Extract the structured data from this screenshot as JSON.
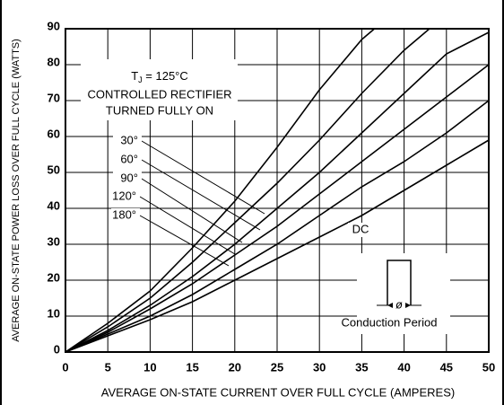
{
  "chart_data": {
    "type": "line",
    "xlabel": "AVERAGE ON-STATE CURRENT OVER FULL CYCLE (AMPERES)",
    "ylabel": "AVERAGE ON-STATE POWER LOSS OVER FULL CYCLE (WATTS)",
    "annotations": {
      "tj": {
        "base": "T",
        "sub": "J",
        "rest": " = 125°C"
      },
      "line1": "CONTROLLED RECTIFIER",
      "line2": "TURNED FULLY ON",
      "phi": "ø",
      "conduction": "Conduction Period"
    },
    "xlim": [
      0,
      50
    ],
    "ylim": [
      0,
      90
    ],
    "xticks": [
      0,
      5,
      10,
      15,
      20,
      25,
      30,
      35,
      40,
      45,
      50
    ],
    "yticks": [
      0,
      10,
      20,
      30,
      40,
      50,
      60,
      70,
      80,
      90
    ],
    "grid": true,
    "color": "#000000",
    "series": [
      {
        "name": "30°",
        "x": [
          0,
          5,
          10,
          15,
          20,
          25,
          30,
          35,
          36.5
        ],
        "values": [
          0,
          8,
          17,
          29,
          42,
          57,
          73,
          87,
          90
        ]
      },
      {
        "name": "60°",
        "x": [
          0,
          5,
          10,
          15,
          20,
          25,
          30,
          35,
          40,
          43
        ],
        "values": [
          0,
          7,
          15,
          25,
          36,
          47,
          59,
          72,
          84,
          90
        ]
      },
      {
        "name": "90°",
        "x": [
          0,
          5,
          10,
          15,
          20,
          25,
          30,
          35,
          40,
          45,
          50
        ],
        "values": [
          0,
          6,
          13,
          21,
          30,
          40,
          50,
          61,
          72,
          83,
          89
        ]
      },
      {
        "name": "120°",
        "x": [
          0,
          5,
          10,
          15,
          20,
          25,
          30,
          35,
          40,
          45,
          50
        ],
        "values": [
          0,
          5.5,
          12,
          19,
          27,
          35,
          44,
          53,
          62,
          71,
          80
        ]
      },
      {
        "name": "180°",
        "x": [
          0,
          5,
          10,
          15,
          20,
          25,
          30,
          35,
          40,
          45,
          50
        ],
        "values": [
          0,
          5,
          10,
          16,
          23,
          30,
          38,
          46,
          53,
          61,
          70
        ]
      },
      {
        "name": "DC",
        "x": [
          0,
          5,
          10,
          15,
          20,
          25,
          30,
          35,
          40,
          45,
          50
        ],
        "values": [
          0,
          4.5,
          9,
          14,
          20,
          26,
          32,
          38,
          45,
          52,
          59
        ]
      }
    ]
  }
}
